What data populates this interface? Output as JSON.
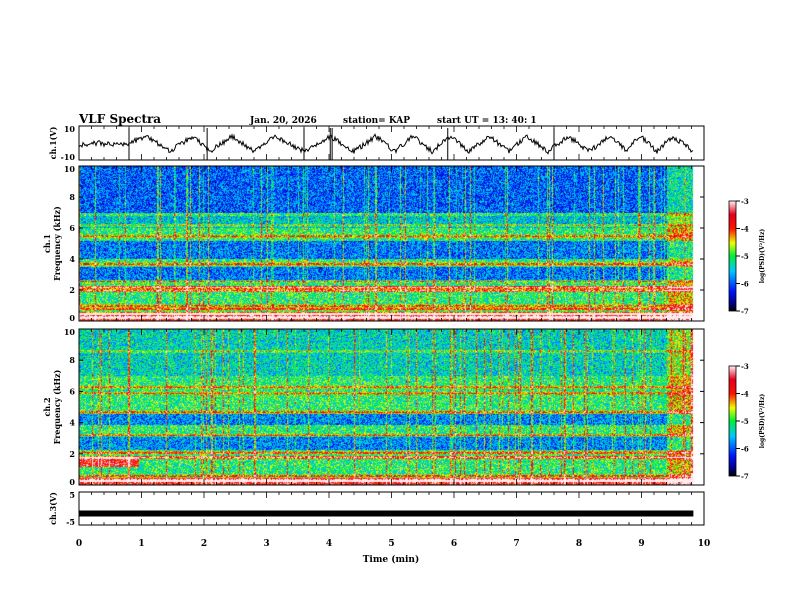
{
  "header": {
    "title": "VLF Spectra",
    "date": "Jan. 20, 2026",
    "station": "station= KAP",
    "start": "start  UT =   13: 40: 1"
  },
  "chart_data": [
    {
      "type": "line",
      "name": "ch1-waveform",
      "ylabel": "ch.1(V)",
      "ylim": [
        -10,
        10
      ],
      "yticks": [
        "10",
        "-10"
      ],
      "xlim": [
        0,
        10
      ],
      "x": [
        0,
        0.3,
        0.5,
        0.8,
        1.09,
        1.45,
        1.82,
        2.1,
        2.45,
        2.8,
        3.15,
        3.6,
        4.02,
        4.4,
        4.75,
        5.05,
        5.34,
        5.65,
        5.94,
        6.25,
        6.56,
        6.87,
        7.17,
        7.5,
        7.83,
        8.15,
        8.5,
        8.75,
        8.98,
        9.25,
        9.5,
        9.83
      ],
      "y": [
        -1,
        0,
        -1,
        0,
        4,
        -5,
        4,
        -5,
        4,
        -5,
        4,
        -5,
        4,
        -5,
        4,
        -5,
        4,
        -5,
        4,
        -5,
        4,
        -5,
        4,
        -5,
        4,
        -5,
        4,
        -4,
        4,
        -5,
        4,
        -5
      ]
    },
    {
      "type": "heatmap",
      "name": "ch1-spectrogram",
      "ylabel_top": "ch.1",
      "ylabel": "Frequency (kHz)",
      "ylim": [
        0,
        10
      ],
      "yticks": [
        "0",
        "2",
        "4",
        "6",
        "8",
        "10"
      ],
      "xlim": [
        0,
        10
      ],
      "data_end_min": 9.83,
      "colorbar": {
        "label": "log(PSD)(V²/Hz)",
        "range": [
          -7,
          -3
        ],
        "ticks": [
          "-3",
          "-4",
          "-5",
          "-6",
          "-7"
        ]
      }
    },
    {
      "type": "heatmap",
      "name": "ch2-spectrogram",
      "ylabel_top": "ch.2",
      "ylabel": "Frequency (kHz)",
      "ylim": [
        0,
        10
      ],
      "yticks": [
        "0",
        "2",
        "4",
        "6",
        "8",
        "10"
      ],
      "xlim": [
        0,
        10
      ],
      "data_end_min": 9.83,
      "colorbar": {
        "label": "log(PSD)(V²/Hz)",
        "range": [
          -7,
          -3
        ],
        "ticks": [
          "-3",
          "-4",
          "-5",
          "-6",
          "-7"
        ]
      }
    },
    {
      "type": "line",
      "name": "ch3-waveform",
      "ylabel": "ch.3(V)",
      "ylim": [
        -5,
        5
      ],
      "yticks": [
        "5",
        "-5"
      ],
      "xlim": [
        0,
        9.83
      ],
      "x": [
        0,
        9.83
      ],
      "y": [
        -1.5,
        -1.5
      ],
      "xlabel": "Time (min)",
      "xticks": [
        "0",
        "1",
        "2",
        "3",
        "4",
        "5",
        "6",
        "7",
        "8",
        "9",
        "10"
      ]
    }
  ]
}
